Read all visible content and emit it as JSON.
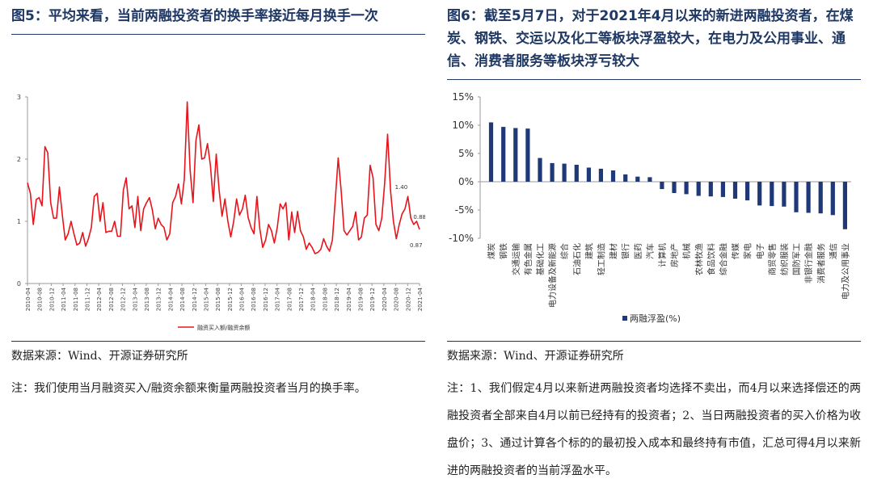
{
  "left": {
    "title": "图5：平均来看，当前两融投资者的换手率接近每月换手一次",
    "source": "数据来源：Wind、开源证券研究所",
    "note": "注：我们使用当月融资买入/融资余额来衡量两融投资者当月的换手率。"
  },
  "right": {
    "title": "图6：截至5月7日，对于2021年4月以来的新进两融投资者，在煤炭、钢铁、交运以及化工等板块浮盈较大，在电力及公用事业、通信、消费者服务等板块浮亏较大",
    "source": "数据来源：Wind、开源证券研究所",
    "note": "注：1、我们假定4月以来新进两融投资者均选择不卖出，而4月以来选择偿还的两融投资者全部来自4月以前已经持有的投资者；2、当日两融投资者的买入价格为收盘价；3、通过计算各个标的的最初投入成本和最终持有市值，汇总可得4月以来新进的两融投资者的当前浮盈水平。"
  },
  "colors": {
    "line": "#e8141c",
    "bar": "#1f3878",
    "title": "#1f3864"
  },
  "chart_data": [
    {
      "type": "line",
      "series": [
        {
          "name": "融资买入额/融资余额",
          "values": [
            1.62,
            1.45,
            0.95,
            1.35,
            1.38,
            1.25,
            2.2,
            2.1,
            1.3,
            1.05,
            1.05,
            1.55,
            1.1,
            0.7,
            0.8,
            1.0,
            0.8,
            0.62,
            0.65,
            0.82,
            0.6,
            0.72,
            0.9,
            1.4,
            1.45,
            1.0,
            1.3,
            0.82,
            0.84,
            0.84,
            1.0,
            0.76,
            0.76,
            1.5,
            1.7,
            1.2,
            1.25,
            0.9,
            1.4,
            0.85,
            1.2,
            1.3,
            1.38,
            1.18,
            0.88,
            1.05,
            0.95,
            0.9,
            0.7,
            0.8,
            1.3,
            1.4,
            1.6,
            1.28,
            1.68,
            2.92,
            1.82,
            1.3,
            2.3,
            2.55,
            2.0,
            2.02,
            2.25,
            1.9,
            1.32,
            2.08,
            1.5,
            1.08,
            1.36,
            1.0,
            0.75,
            1.0,
            1.36,
            1.1,
            1.2,
            1.42,
            1.06,
            0.9,
            0.8,
            1.4,
            0.88,
            0.58,
            0.7,
            0.95,
            0.85,
            0.65,
            0.9,
            1.28,
            1.2,
            1.3,
            0.7,
            1.15,
            0.82,
            1.16,
            0.85,
            0.75,
            0.55,
            0.65,
            0.58,
            0.48,
            0.5,
            0.55,
            0.72,
            0.6,
            0.52,
            0.7,
            1.35,
            2.02,
            1.5,
            0.85,
            0.78,
            0.85,
            0.92,
            1.15,
            0.7,
            0.75,
            1.05,
            1.1,
            1.9,
            1.7,
            0.95,
            0.85,
            1.05,
            1.62,
            2.4,
            1.5,
            1.0,
            0.72,
            0.95,
            1.12,
            1.2,
            1.4,
            1.05,
            0.95,
            1.0,
            0.87
          ]
        }
      ],
      "x_labels": [
        "2010-04",
        "2010-08",
        "2010-12",
        "2011-04",
        "2011-08",
        "2011-12",
        "2012-04",
        "2012-08",
        "2012-12",
        "2013-04",
        "2013-08",
        "2013-12",
        "2014-04",
        "2014-08",
        "2014-12",
        "2015-04",
        "2015-08",
        "2015-12",
        "2016-04",
        "2016-08",
        "2016-12",
        "2017-04",
        "2017-08",
        "2017-12",
        "2018-04",
        "2018-08",
        "2018-12",
        "2019-04",
        "2019-08",
        "2019-12",
        "2020-04",
        "2020-08",
        "2020-12",
        "2021-04"
      ],
      "ylim": [
        0,
        3
      ],
      "y_ticks": [
        "0",
        "1",
        "2",
        "3"
      ],
      "annotations": [
        "1.40",
        "0.88",
        "0.87"
      ],
      "legend": "融资买入额/融资余额",
      "grid": false
    },
    {
      "type": "bar",
      "categories": [
        "煤炭",
        "钢铁",
        "交通运输",
        "有色金属",
        "基础化工",
        "电力设备及新能源",
        "综合",
        "石油石化",
        "建筑",
        "轻工制造",
        "建材",
        "银行",
        "医药",
        "汽车",
        "计算机",
        "房地产",
        "机械",
        "农林牧渔",
        "食品饮料",
        "综合金融",
        "传媒",
        "家电",
        "电子",
        "商贸零售",
        "纺织服装",
        "国防军工",
        "非银行金融",
        "消费者服务",
        "通信",
        "电力及公用事业"
      ],
      "values": [
        10.5,
        9.7,
        9.5,
        9.4,
        4.2,
        3.3,
        3.2,
        3.0,
        2.5,
        2.3,
        2.0,
        1.3,
        0.9,
        0.8,
        -1.3,
        -2.0,
        -2.2,
        -2.5,
        -2.6,
        -2.7,
        -3.0,
        -3.3,
        -4.2,
        -4.3,
        -4.4,
        -5.4,
        -5.5,
        -5.6,
        -5.9,
        -8.4
      ],
      "series": [
        {
          "name": "两融浮盈(%)"
        }
      ],
      "ylim": [
        -10,
        15
      ],
      "y_ticks": [
        "15%",
        "10%",
        "5%",
        "0%",
        "-5%",
        "-10%"
      ],
      "legend": "两融浮盈(%)",
      "grid": false
    }
  ]
}
